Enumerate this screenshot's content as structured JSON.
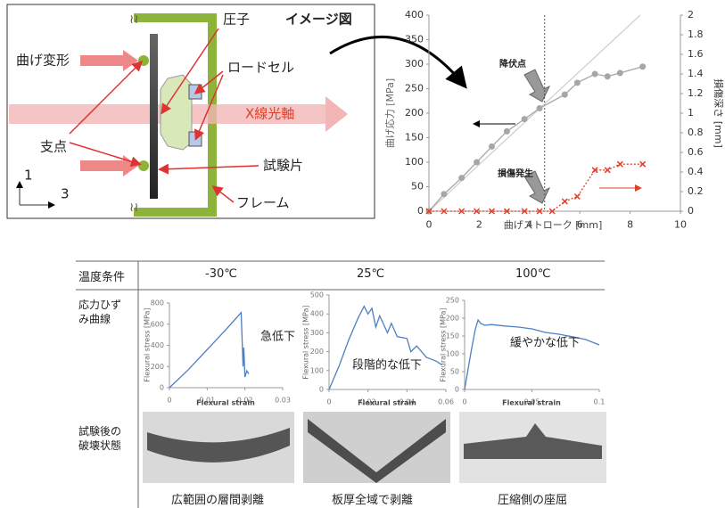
{
  "diagram": {
    "labels": {
      "indenter": "圧子",
      "image_title": "イメージ図",
      "bending": "曲げ変形",
      "load_cell": "ロードセル",
      "xray": "X線光軸",
      "support": "支点",
      "specimen": "試験片",
      "frame": "フレーム",
      "axis1": "1",
      "axis3": "3"
    }
  },
  "chart_data": [
    {
      "type": "line",
      "xlabel": "曲げストローク [mm]",
      "ylabel": "曲げ応力 [MPa]",
      "y2label": "損傷深さ [mm]",
      "xlim": [
        0,
        10
      ],
      "xticks": [
        0,
        2,
        4,
        6,
        8,
        10
      ],
      "ylim": [
        0,
        400
      ],
      "yticks": [
        0,
        50,
        100,
        150,
        200,
        250,
        300,
        350,
        400
      ],
      "y2lim": [
        0,
        2
      ],
      "y2ticks": [
        0,
        0.2,
        0.4,
        0.6,
        0.8,
        1,
        1.2,
        1.4,
        1.6,
        1.8,
        2
      ],
      "vline_x": 4.6,
      "annotations": [
        "降伏点",
        "損傷発生"
      ],
      "series": [
        {
          "color": "#d0d0d0",
          "x": [
            0,
            8.4
          ],
          "values": [
            0,
            400
          ],
          "marker": "none",
          "line_style": "solid"
        },
        {
          "color": "#a6a6a6",
          "x": [
            0,
            0.6,
            1.3,
            1.9,
            2.5,
            3.1,
            3.8,
            4.4,
            5.4,
            5.9,
            6.6,
            7.1,
            7.6,
            8.5
          ],
          "values": [
            0,
            35,
            68,
            100,
            132,
            163,
            188,
            210,
            238,
            262,
            280,
            275,
            282,
            295
          ],
          "marker": "circle",
          "line_style": "solid"
        },
        {
          "color": "#e0402a",
          "axis": "y2",
          "x": [
            0,
            0.6,
            1.3,
            1.9,
            2.5,
            3.1,
            3.8,
            4.4,
            4.9,
            5.4,
            5.9,
            6.6,
            7.1,
            7.6,
            8.5
          ],
          "values": [
            0,
            0,
            0,
            0,
            0,
            0,
            0,
            0,
            0,
            0.1,
            0.15,
            0.42,
            0.42,
            0.48,
            0.48
          ],
          "marker": "x",
          "line_style": "dotted"
        }
      ]
    },
    {
      "type": "line",
      "xlabel": "Flexural strain",
      "ylabel": "Flexural stress [MPa]",
      "xlim": [
        0,
        0.03
      ],
      "xticks": [
        0,
        0.01,
        0.02,
        0.03
      ],
      "ylim": [
        0,
        800
      ],
      "yticks": [
        0,
        200,
        400,
        600,
        800
      ],
      "annotations": [
        "急低下"
      ],
      "series": [
        {
          "color": "#4f7fc1",
          "x": [
            0,
            0.005,
            0.01,
            0.015,
            0.019,
            0.0195,
            0.0197,
            0.02,
            0.0205,
            0.021
          ],
          "values": [
            0,
            170,
            360,
            550,
            710,
            200,
            380,
            100,
            160,
            130
          ],
          "marker": "none",
          "line_style": "solid"
        }
      ]
    },
    {
      "type": "line",
      "xlabel": "Flexural strain",
      "ylabel": "Flexural stress [MPa]",
      "xlim": [
        0,
        0.06
      ],
      "xticks": [
        0,
        0.02,
        0.04,
        0.06
      ],
      "ylim": [
        0,
        500
      ],
      "yticks": [
        0,
        100,
        200,
        300,
        400,
        500
      ],
      "annotations": [
        "段階的な低下"
      ],
      "series": [
        {
          "color": "#4f7fc1",
          "x": [
            0,
            0.005,
            0.01,
            0.015,
            0.018,
            0.02,
            0.022,
            0.024,
            0.026,
            0.03,
            0.032,
            0.035,
            0.04,
            0.042,
            0.045,
            0.05,
            0.055,
            0.058
          ],
          "values": [
            0,
            120,
            260,
            380,
            440,
            400,
            430,
            330,
            390,
            300,
            350,
            280,
            270,
            200,
            230,
            170,
            150,
            130
          ],
          "marker": "none",
          "line_style": "solid"
        }
      ]
    },
    {
      "type": "line",
      "xlabel": "Flexural strain",
      "ylabel": "Flexural stress [MPa]",
      "xlim": [
        0,
        0.1
      ],
      "xticks": [
        0,
        0.05,
        0.1
      ],
      "ylim": [
        0,
        250
      ],
      "yticks": [
        0,
        50,
        100,
        150,
        200,
        250
      ],
      "annotations": [
        "緩やかな低下"
      ],
      "series": [
        {
          "color": "#4f7fc1",
          "x": [
            0,
            0.005,
            0.008,
            0.01,
            0.012,
            0.015,
            0.02,
            0.03,
            0.04,
            0.05,
            0.06,
            0.07,
            0.08,
            0.09,
            0.1
          ],
          "values": [
            0,
            110,
            170,
            195,
            185,
            180,
            182,
            178,
            175,
            170,
            160,
            155,
            148,
            140,
            125
          ],
          "marker": "none",
          "line_style": "solid"
        }
      ]
    }
  ],
  "table": {
    "headers": [
      "温度条件",
      "-30℃",
      "25℃",
      "100℃"
    ],
    "row_labels": [
      "応力ひずみ曲線",
      "試験後の破壊状態"
    ],
    "captions": [
      "広範囲の層間剥離",
      "板厚全域で剥離",
      "圧縮側の座屈"
    ]
  }
}
